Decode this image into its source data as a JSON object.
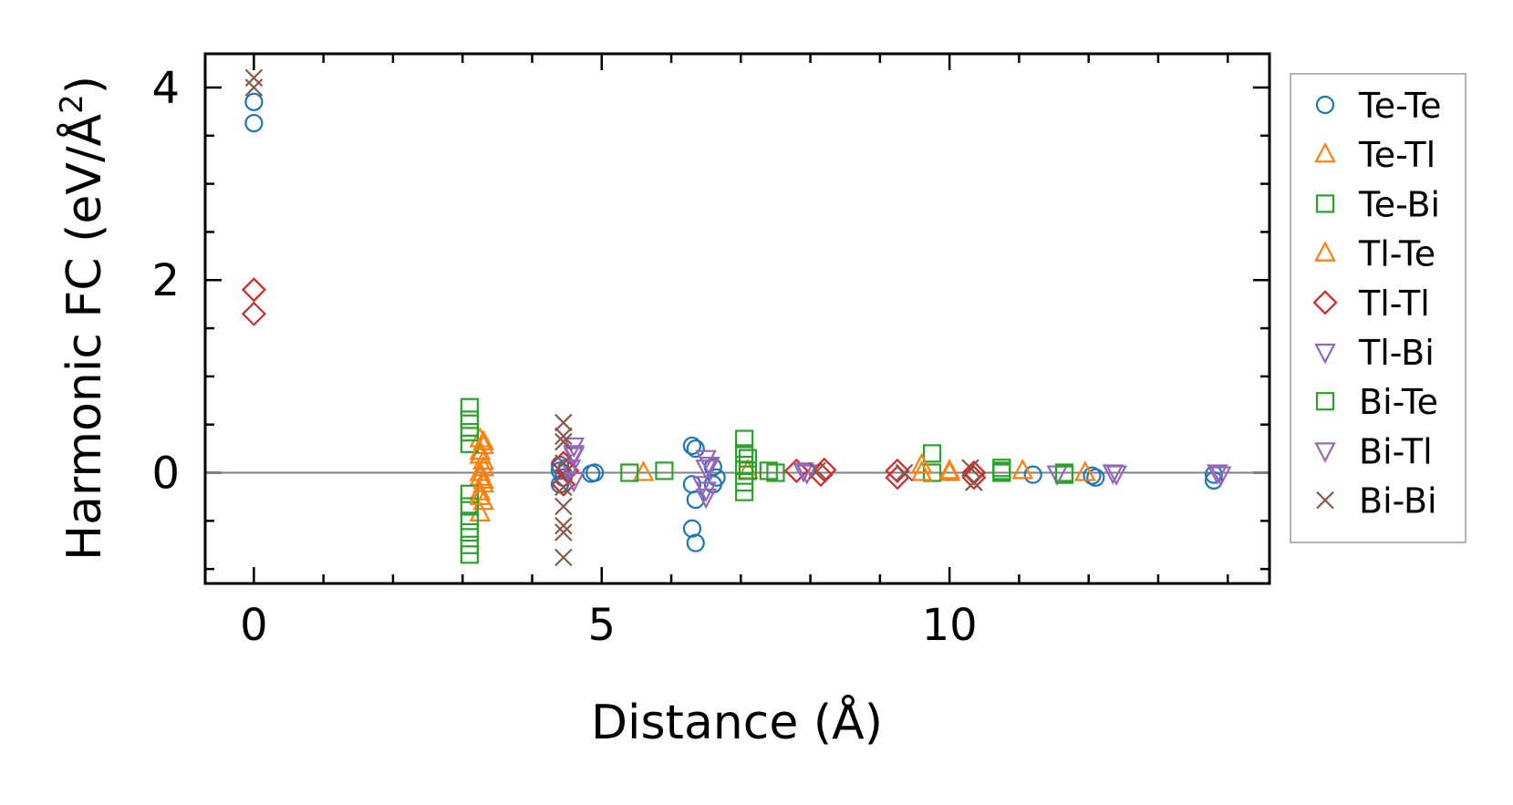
{
  "chart_data": {
    "type": "scatter",
    "title": "",
    "xlabel": "Distance (Å)",
    "ylabel": "Harmonic FC (eV/Å²)",
    "ylabel_main": "Harmonic FC (eV/Å",
    "ylabel_sup": "2",
    "ylabel_end": ")",
    "xlim": [
      -0.7,
      14.6
    ],
    "ylim": [
      -1.15,
      4.35
    ],
    "xticks": [
      0,
      5,
      10
    ],
    "xtick_labels": [
      "0",
      "5",
      "10"
    ],
    "yticks": [
      0,
      2,
      4
    ],
    "ytick_labels": [
      "0",
      "2",
      "4"
    ],
    "legend_position": "outside-right",
    "zero_line_color": "#808080",
    "series": [
      {
        "name": "Te-Te",
        "marker": "circle",
        "color": "#1f77b4",
        "points": [
          [
            0,
            3.85
          ],
          [
            0,
            3.63
          ],
          [
            4.4,
            0.08
          ],
          [
            4.4,
            0.02
          ],
          [
            4.45,
            -0.05
          ],
          [
            4.4,
            -0.12
          ],
          [
            4.5,
            0.05
          ],
          [
            4.85,
            -0.01
          ],
          [
            4.9,
            0.0
          ],
          [
            6.3,
            0.28
          ],
          [
            6.35,
            0.25
          ],
          [
            6.3,
            -0.12
          ],
          [
            6.35,
            -0.28
          ],
          [
            6.3,
            -0.58
          ],
          [
            6.35,
            -0.73
          ],
          [
            6.6,
            0.06
          ],
          [
            6.65,
            -0.05
          ],
          [
            6.6,
            -0.12
          ],
          [
            11.2,
            -0.02
          ],
          [
            12.05,
            -0.03
          ],
          [
            12.1,
            -0.05
          ],
          [
            13.8,
            -0.02
          ],
          [
            13.8,
            -0.08
          ]
        ]
      },
      {
        "name": "Te-Tl",
        "marker": "triangle-up",
        "color": "#ff7f0e",
        "points": [
          [
            3.25,
            0.35
          ],
          [
            3.3,
            0.28
          ],
          [
            3.25,
            0.18
          ],
          [
            3.3,
            0.05
          ],
          [
            3.25,
            -0.05
          ],
          [
            3.3,
            -0.12
          ],
          [
            3.25,
            -0.2
          ],
          [
            3.3,
            -0.3
          ],
          [
            3.25,
            -0.42
          ],
          [
            5.6,
            0.0
          ],
          [
            7.1,
            0.02
          ],
          [
            10.0,
            0.0
          ],
          [
            11.05,
            0.02
          ],
          [
            11.95,
            0.0
          ]
        ]
      },
      {
        "name": "Te-Bi",
        "marker": "square",
        "color": "#2ca02c",
        "points": [
          [
            3.1,
            0.68
          ],
          [
            3.1,
            0.55
          ],
          [
            3.1,
            0.42
          ],
          [
            3.1,
            0.3
          ],
          [
            3.1,
            -0.22
          ],
          [
            3.1,
            -0.35
          ],
          [
            3.1,
            -0.5
          ],
          [
            3.1,
            -0.62
          ],
          [
            3.1,
            -0.75
          ],
          [
            3.1,
            -0.85
          ],
          [
            5.4,
            0.0
          ],
          [
            5.9,
            0.02
          ],
          [
            7.05,
            0.35
          ],
          [
            7.05,
            0.2
          ],
          [
            7.05,
            0.08
          ],
          [
            7.05,
            -0.1
          ],
          [
            7.05,
            -0.2
          ],
          [
            7.4,
            0.02
          ],
          [
            9.75,
            0.2
          ],
          [
            9.75,
            0.0
          ],
          [
            10.75,
            0.05
          ],
          [
            10.75,
            0.0
          ],
          [
            11.65,
            0.0
          ]
        ]
      },
      {
        "name": "Tl-Te",
        "marker": "triangle-up",
        "color": "#ff7f0e",
        "points": [
          [
            3.3,
            0.32
          ],
          [
            3.25,
            0.22
          ],
          [
            3.3,
            0.12
          ],
          [
            3.25,
            0.0
          ],
          [
            3.3,
            -0.08
          ],
          [
            3.25,
            -0.25
          ],
          [
            9.6,
            0.08
          ],
          [
            9.6,
            0.0
          ],
          [
            10.0,
            0.02
          ]
        ]
      },
      {
        "name": "Tl-Tl",
        "marker": "diamond",
        "color": "#d62728",
        "points": [
          [
            0,
            1.9
          ],
          [
            0,
            1.65
          ],
          [
            4.45,
            0.1
          ],
          [
            4.5,
            0.02
          ],
          [
            4.45,
            -0.12
          ],
          [
            7.8,
            0.02
          ],
          [
            8.15,
            -0.02
          ],
          [
            8.2,
            0.03
          ],
          [
            9.25,
            0.02
          ],
          [
            9.25,
            -0.05
          ],
          [
            10.35,
            0.0
          ],
          [
            10.35,
            -0.05
          ]
        ]
      },
      {
        "name": "Tl-Bi",
        "marker": "triangle-down",
        "color": "#9467bd",
        "points": [
          [
            4.6,
            0.28
          ],
          [
            4.6,
            0.18
          ],
          [
            4.55,
            0.05
          ],
          [
            4.6,
            -0.08
          ],
          [
            6.5,
            0.15
          ],
          [
            6.5,
            0.05
          ],
          [
            6.45,
            -0.12
          ],
          [
            6.5,
            -0.25
          ],
          [
            7.95,
            0.0
          ],
          [
            11.55,
            -0.01
          ],
          [
            12.35,
            0.0
          ],
          [
            13.85,
            0.0
          ],
          [
            13.9,
            -0.02
          ]
        ]
      },
      {
        "name": "Bi-Te",
        "marker": "square",
        "color": "#2ca02c",
        "points": [
          [
            7.1,
            0.15
          ],
          [
            7.1,
            0.02
          ],
          [
            7.5,
            0.0
          ],
          [
            10.75,
            0.02
          ],
          [
            11.65,
            -0.02
          ]
        ]
      },
      {
        "name": "Bi-Tl",
        "marker": "triangle-down",
        "color": "#9467bd",
        "points": [
          [
            4.6,
            0.2
          ],
          [
            6.55,
            0.08
          ],
          [
            6.5,
            -0.18
          ],
          [
            7.9,
            0.02
          ],
          [
            12.4,
            -0.01
          ]
        ]
      },
      {
        "name": "Bi-Bi",
        "marker": "x",
        "color": "#8c564b",
        "points": [
          [
            0,
            4.1
          ],
          [
            0,
            4.0
          ],
          [
            4.45,
            0.52
          ],
          [
            4.45,
            0.38
          ],
          [
            4.45,
            0.32
          ],
          [
            4.45,
            0.1
          ],
          [
            4.45,
            -0.15
          ],
          [
            4.45,
            -0.35
          ],
          [
            4.45,
            -0.55
          ],
          [
            4.45,
            -0.62
          ],
          [
            4.45,
            -0.88
          ],
          [
            8.1,
            0.02
          ],
          [
            9.35,
            0.0
          ],
          [
            10.3,
            0.05
          ],
          [
            10.35,
            -0.1
          ]
        ]
      }
    ]
  }
}
